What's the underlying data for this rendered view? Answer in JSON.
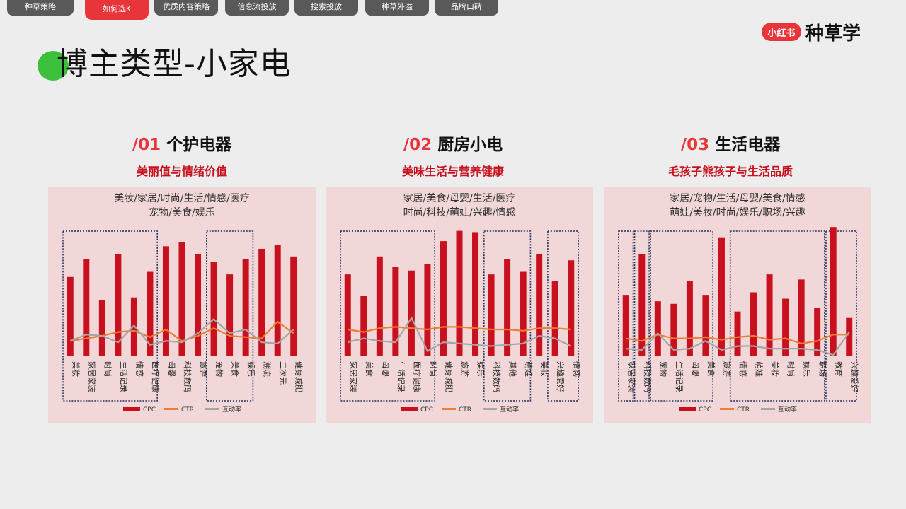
{
  "tabs": [
    {
      "label": "种草策略",
      "active": false
    },
    {
      "label": "如何选K",
      "active": true
    },
    {
      "label": "优质内容策略",
      "active": false
    },
    {
      "label": "信息流投放",
      "active": false
    },
    {
      "label": "搜索投放",
      "active": false
    },
    {
      "label": "种草外溢",
      "active": false
    },
    {
      "label": "品牌口碑",
      "active": false
    }
  ],
  "page_title": "博主类型-小家电",
  "logo": {
    "badge": "小红书",
    "text": "种草学"
  },
  "colors": {
    "cpc": "#c8101e",
    "ctr": "#ed7d31",
    "interaction": "#a5a5a5",
    "accent": "#e8353a"
  },
  "legend": [
    "CPC",
    "CTR",
    "互动率"
  ],
  "sections": [
    {
      "num": "/01",
      "name": "个护电器",
      "subtitle": "美丽值与情绪价值",
      "tags_line1": "美妆/家居/时尚/生活/情感/医疗",
      "tags_line2": "宠物/美食/娱乐"
    },
    {
      "num": "/02",
      "name": "厨房小电",
      "subtitle": "美味生活与营养健康",
      "tags_line1": "家居/美食/母婴/生活/医疗",
      "tags_line2": "时尚/科技/萌娃/兴趣/情感"
    },
    {
      "num": "/03",
      "name": "生活电器",
      "subtitle": "毛孩子熊孩子与生活品质",
      "tags_line1": "家居/宠物/生活/母婴/美食/情感",
      "tags_line2": "萌娃/美妆/时尚/娱乐/职场/兴趣"
    }
  ],
  "chart_data": [
    {
      "type": "bar",
      "ylim": [
        0,
        100
      ],
      "categories": [
        "美妆",
        "家居家装",
        "时尚",
        "生活记录",
        "情感",
        "医疗健康",
        "母婴",
        "科技数码",
        "旅游",
        "宠物",
        "美食",
        "娱乐",
        "潮流",
        "二次元",
        "健身减肥"
      ],
      "series": [
        {
          "name": "CPC",
          "type": "bar",
          "values": [
            62,
            76,
            44,
            80,
            46,
            66,
            86,
            89,
            80,
            74,
            64,
            76,
            84,
            87,
            78
          ]
        },
        {
          "name": "CTR",
          "type": "line",
          "values": [
            12,
            14,
            16,
            19,
            20,
            15,
            21,
            12,
            16,
            22,
            16,
            15,
            14,
            27,
            18
          ]
        },
        {
          "name": "互动率",
          "type": "line",
          "values": [
            12,
            17,
            16,
            11,
            24,
            9,
            12,
            11,
            18,
            29,
            18,
            21,
            11,
            10,
            21
          ]
        }
      ],
      "groups": [
        [
          0,
          5
        ],
        [
          9,
          11
        ]
      ]
    },
    {
      "type": "bar",
      "ylim": [
        0,
        100
      ],
      "categories": [
        "家居家装",
        "美食",
        "母婴",
        "生活记录",
        "医疗健康",
        "时尚",
        "健身减肥",
        "旅游",
        "娱乐",
        "科技数码",
        "其他",
        "萌娃",
        "美妆",
        "兴趣爱好",
        "情感"
      ],
      "series": [
        {
          "name": "CPC",
          "type": "bar",
          "values": [
            64,
            47,
            78,
            70,
            67,
            72,
            90,
            98,
            97,
            64,
            76,
            66,
            80,
            59,
            75
          ]
        },
        {
          "name": "CTR",
          "type": "line",
          "values": [
            21,
            19,
            22,
            23,
            22,
            21,
            23,
            23,
            22,
            21,
            21,
            20,
            22,
            22,
            21
          ]
        },
        {
          "name": "互动率",
          "type": "line",
          "values": [
            11,
            14,
            12,
            11,
            30,
            4,
            11,
            10,
            9,
            8,
            9,
            10,
            16,
            14,
            8
          ]
        }
      ],
      "groups": [
        [
          0,
          5
        ],
        [
          9,
          11
        ],
        [
          13,
          14
        ]
      ]
    },
    {
      "type": "bar",
      "ylim": [
        0,
        100
      ],
      "categories": [
        "家居家装",
        "科技数码",
        "宠物",
        "生活记录",
        "母婴",
        "美食",
        "旅游",
        "情感",
        "萌娃",
        "美妆",
        "时尚",
        "娱乐",
        "职场",
        "教育",
        "兴趣爱好"
      ],
      "series": [
        {
          "name": "CPC",
          "type": "bar",
          "values": [
            48,
            80,
            43,
            41,
            59,
            48,
            93,
            35,
            50,
            64,
            45,
            60,
            38,
            101,
            30
          ]
        },
        {
          "name": "CTR",
          "type": "line",
          "values": [
            14,
            12,
            17,
            14,
            14,
            15,
            13,
            15,
            16,
            13,
            14,
            10,
            12,
            17,
            17
          ]
        },
        {
          "name": "互动率",
          "type": "line",
          "values": [
            6,
            5,
            18,
            5,
            6,
            12,
            5,
            8,
            8,
            6,
            6,
            6,
            5,
            1,
            19
          ]
        }
      ],
      "groups": [
        [
          0,
          0
        ],
        [
          1,
          1
        ],
        [
          2,
          5
        ],
        [
          7,
          12
        ],
        [
          13,
          14
        ]
      ]
    }
  ]
}
